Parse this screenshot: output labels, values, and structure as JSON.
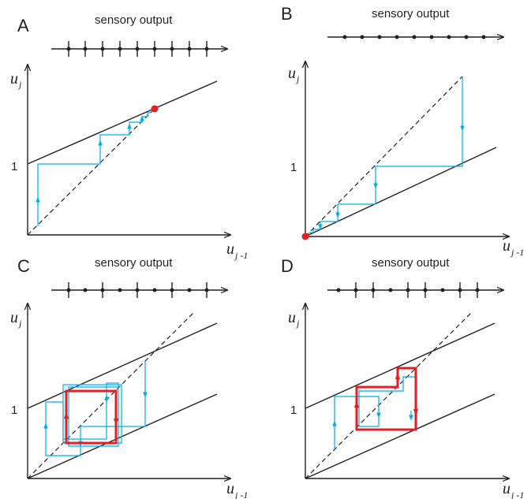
{
  "panels": {
    "A": {
      "letter": "A",
      "output_label": "sensory output",
      "y_label": "u",
      "y_sub": "j",
      "x_label": "u",
      "x_sub": "j -1",
      "tick_label": "1"
    },
    "B": {
      "letter": "B",
      "output_label": "sensory output",
      "y_label": "u",
      "y_sub": "j",
      "x_label": "u",
      "x_sub": "j -1",
      "tick_label": "1"
    },
    "C": {
      "letter": "C",
      "output_label": "sensory output",
      "y_label": "u",
      "y_sub": "j",
      "x_label": "u",
      "x_sub": "j -1",
      "tick_label": "1"
    },
    "D": {
      "letter": "D",
      "output_label": "sensory output",
      "y_label": "u",
      "y_sub": "j",
      "x_label": "u",
      "x_sub": "j -1",
      "tick_label": "1"
    }
  },
  "colors": {
    "axes": "#231f20",
    "cobweb": "#00aeef",
    "cycle": "#e31e24",
    "fixed_point": "#e31e24"
  }
}
